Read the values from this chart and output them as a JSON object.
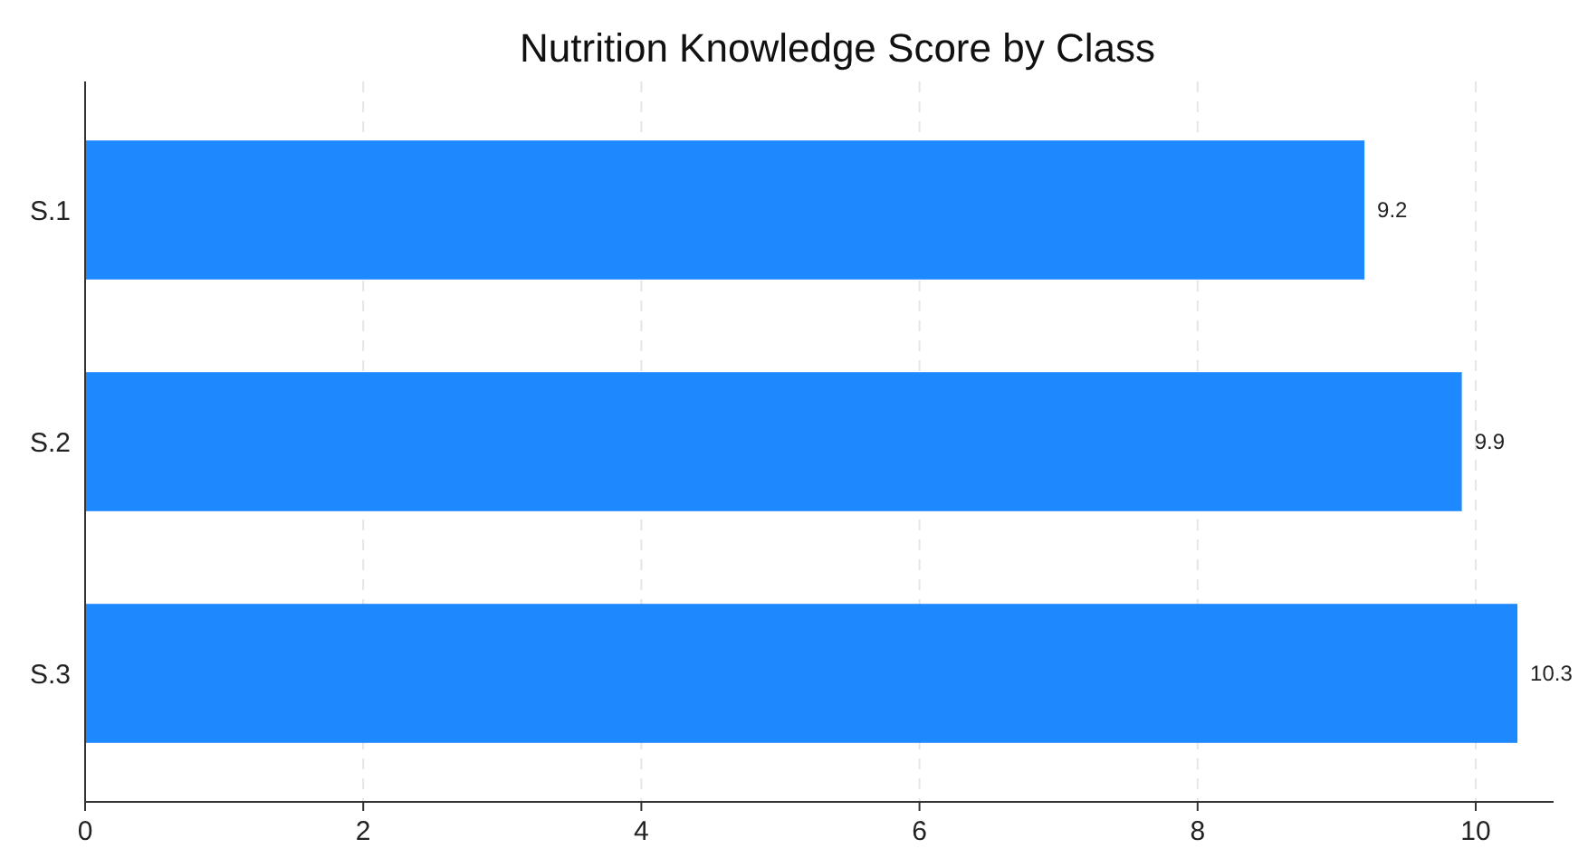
{
  "chart_data": {
    "type": "bar",
    "orientation": "horizontal",
    "title": "Nutrition Knowledge Score by Class",
    "categories": [
      "S.1",
      "S.2",
      "S.3"
    ],
    "values": [
      9.2,
      9.9,
      10.3
    ],
    "color": "#1e88ff",
    "xlim": [
      0,
      10.56
    ],
    "xticks": [
      0,
      2,
      4,
      6,
      8,
      10
    ],
    "grid": "x",
    "data_labels": true
  }
}
